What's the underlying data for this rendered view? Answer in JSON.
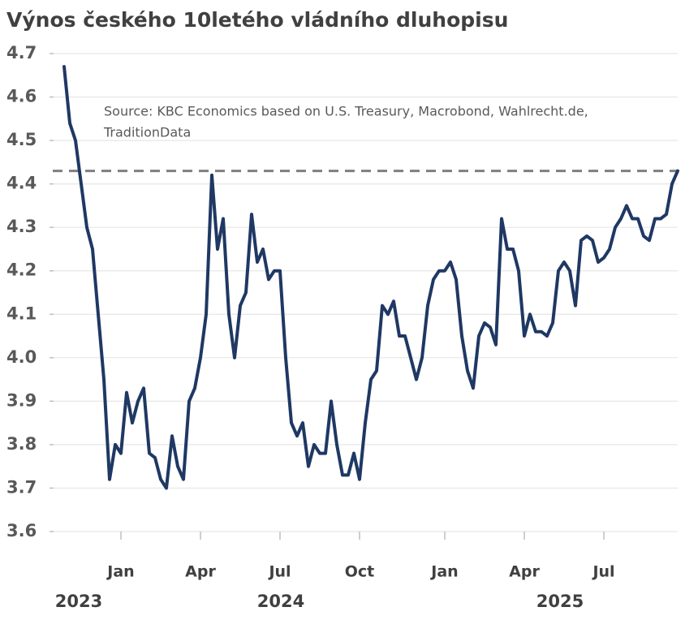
{
  "chart_data": {
    "type": "line",
    "title": "Výnos českého 10letého vládního dluhopisu",
    "annotation": [
      "Source: KBC Economics based on U.S. Treasury, Macrobond, Wahlrecht.de,",
      "TraditionData"
    ],
    "categories": [
      null,
      null,
      null,
      null,
      null,
      null,
      null,
      null,
      null,
      null,
      "Jan",
      null,
      null,
      null,
      null,
      null,
      null,
      null,
      null,
      null,
      null,
      null,
      null,
      null,
      "Apr",
      null,
      null,
      null,
      null,
      null,
      null,
      null,
      null,
      null,
      null,
      null,
      null,
      null,
      "Jul",
      null,
      null,
      null,
      null,
      null,
      null,
      null,
      null,
      null,
      null,
      null,
      null,
      null,
      "Oct",
      null,
      null,
      null,
      null,
      null,
      null,
      null,
      null,
      null,
      null,
      null,
      null,
      null,
      null,
      "Jan",
      null,
      null,
      null,
      null,
      null,
      null,
      null,
      null,
      null,
      null,
      null,
      null,
      null,
      "Apr",
      null,
      null,
      null,
      null,
      null,
      null,
      null,
      null,
      null,
      null,
      null,
      null,
      null,
      "Jul",
      null,
      null,
      null,
      null,
      null,
      null,
      null,
      null,
      null,
      null,
      null,
      null,
      null
    ],
    "year_labels": [
      "2023",
      "2024",
      "2025"
    ],
    "values": [
      4.67,
      4.54,
      4.5,
      4.4,
      4.3,
      4.25,
      4.1,
      3.95,
      3.72,
      3.8,
      3.78,
      3.92,
      3.85,
      3.9,
      3.93,
      3.78,
      3.77,
      3.72,
      3.7,
      3.82,
      3.75,
      3.72,
      3.9,
      3.93,
      4.0,
      4.1,
      4.42,
      4.25,
      4.32,
      4.1,
      4.0,
      4.12,
      4.15,
      4.33,
      4.22,
      4.25,
      4.18,
      4.2,
      4.2,
      4.0,
      3.85,
      3.82,
      3.85,
      3.75,
      3.8,
      3.78,
      3.78,
      3.9,
      3.8,
      3.73,
      3.73,
      3.78,
      3.72,
      3.85,
      3.95,
      3.97,
      4.12,
      4.1,
      4.13,
      4.05,
      4.05,
      4.0,
      3.95,
      4.0,
      4.12,
      4.18,
      4.2,
      4.2,
      4.22,
      4.18,
      4.05,
      3.97,
      3.93,
      4.05,
      4.08,
      4.07,
      4.03,
      4.32,
      4.25,
      4.25,
      4.2,
      4.05,
      4.1,
      4.06,
      4.06,
      4.05,
      4.08,
      4.2,
      4.22,
      4.2,
      4.12,
      4.27,
      4.28,
      4.27,
      4.22,
      4.23,
      4.25,
      4.3,
      4.32,
      4.35,
      4.32,
      4.32,
      4.28,
      4.27,
      4.32,
      4.32,
      4.33,
      4.4,
      4.43
    ],
    "color": "#1f3864",
    "reference_line": 4.43,
    "reference_color": "#7f7f7f",
    "ylim": [
      3.6,
      4.7
    ],
    "yticks": [
      3.6,
      3.7,
      3.8,
      3.9,
      {
        "value": 4,
        "label": "4.0"
      },
      4.1,
      4.2,
      4.3,
      4.4,
      4.5,
      4.6,
      4.7
    ],
    "grid": true
  }
}
